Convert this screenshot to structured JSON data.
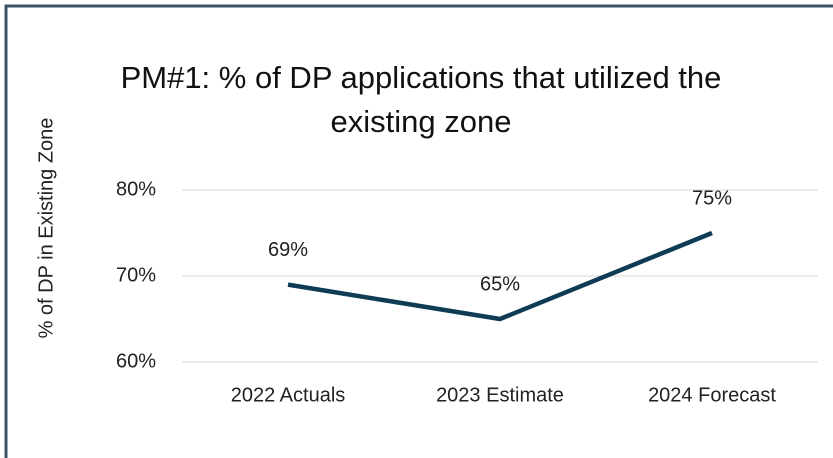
{
  "chart_data": {
    "type": "line",
    "title": "PM#1: % of DP applications that utilized the existing zone",
    "y_label": "% of DP in Existing Zone",
    "categories": [
      "2022 Actuals",
      "2023 Estimate",
      "2024 Forecast"
    ],
    "values": [
      69,
      65,
      75
    ],
    "value_labels": [
      "69%",
      "65%",
      "75%"
    ],
    "color": "#0e3c55",
    "ylim": [
      60,
      80
    ],
    "yticks": [
      {
        "value": 60,
        "label": "60%"
      },
      {
        "value": 70,
        "label": "70%"
      },
      {
        "value": 80,
        "label": "80%"
      }
    ],
    "grid": true
  }
}
